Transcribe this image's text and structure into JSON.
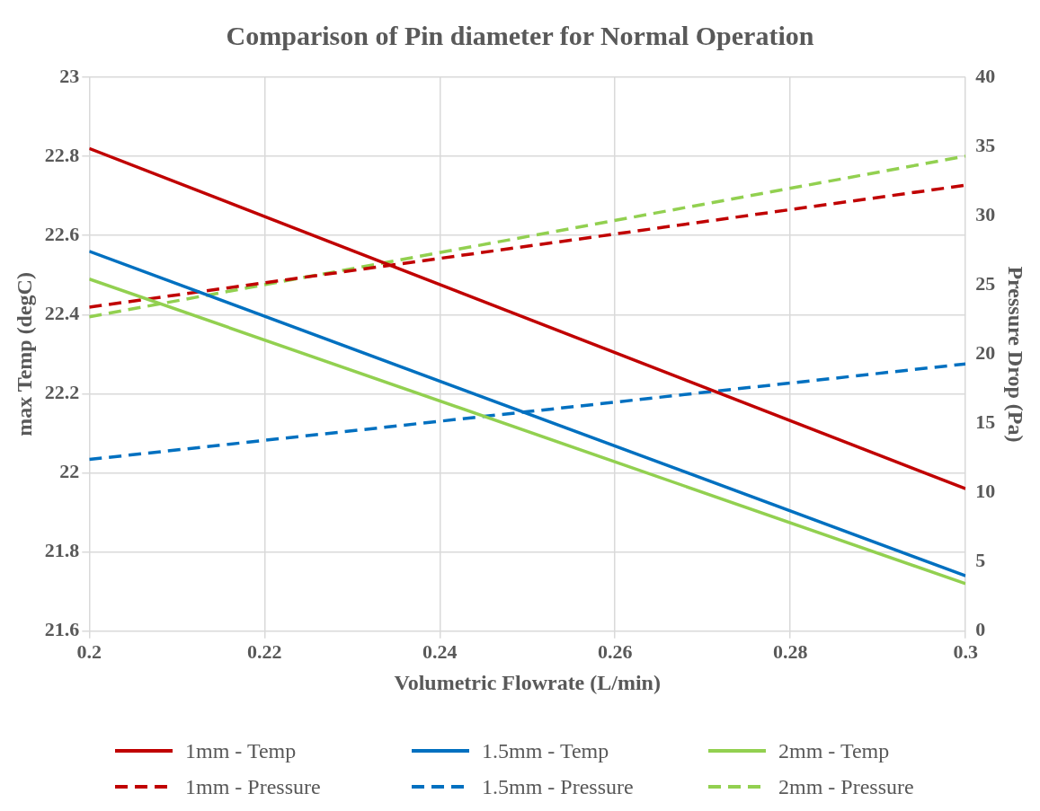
{
  "chart_data": {
    "type": "line",
    "title": "Comparison of Pin diameter for Normal Operation",
    "xlabel": "Volumetric Flowrate (L/min)",
    "ylabel": "max Temp (degC)",
    "y2label": "Pressure Drop (Pa)",
    "x": [
      0.2,
      0.3
    ],
    "xlim": [
      0.2,
      0.3
    ],
    "xticks": [
      0.2,
      0.22,
      0.24,
      0.26,
      0.28,
      0.3
    ],
    "ylim": [
      21.6,
      23
    ],
    "yticks": [
      21.6,
      21.8,
      22,
      22.2,
      22.4,
      22.6,
      22.8,
      23
    ],
    "y2lim": [
      0,
      40
    ],
    "y2ticks": [
      0,
      5,
      10,
      15,
      20,
      25,
      30,
      35,
      40
    ],
    "grid": true,
    "legend": "bottom",
    "marker": "none",
    "series": [
      {
        "name": "1mm - Temp",
        "color": "#c00000",
        "values": [
          22.82,
          21.96
        ],
        "line_style": "solid"
      },
      {
        "name": "1.5mm - Temp",
        "color": "#0070c0",
        "values": [
          22.56,
          21.74
        ],
        "line_style": "solid"
      },
      {
        "name": "2mm - Temp",
        "color": "#92d050",
        "values": [
          22.49,
          21.72
        ],
        "line_style": "solid"
      },
      {
        "name": "1mm - Pressure",
        "color": "#c00000",
        "values": [
          23.4,
          32.2
        ],
        "axis": "y2",
        "line_style": "dashed"
      },
      {
        "name": "1.5mm - Pressure",
        "color": "#0070c0",
        "values": [
          12.4,
          19.3
        ],
        "axis": "y2",
        "line_style": "dashed"
      },
      {
        "name": "2mm - Pressure",
        "color": "#92d050",
        "values": [
          22.7,
          34.3
        ],
        "axis": "y2",
        "line_style": "dashed"
      }
    ]
  }
}
